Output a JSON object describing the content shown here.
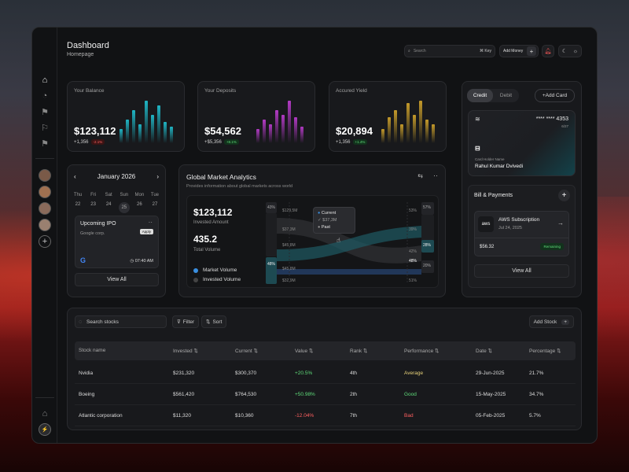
{
  "header": {
    "title": "Dashboard",
    "subtitle": "Homepage",
    "search_placeholder": "Search",
    "search_shortcut": "⌘ Key",
    "add_money_label": "Add Money"
  },
  "stats": [
    {
      "label": "Your Balance",
      "value": "$123,112",
      "change": "+1,356",
      "pct": "-2.1%",
      "trend": "neg",
      "color": "#1fb5c4",
      "bars": [
        0.3,
        0.5,
        0.7,
        0.4,
        0.9,
        0.6,
        0.8,
        0.45,
        0.35
      ]
    },
    {
      "label": "Your Deposits",
      "value": "$54,562",
      "change": "+$5,356",
      "pct": "+8.1%",
      "trend": "pos",
      "color": "#b23ac4",
      "bars": [
        0.3,
        0.5,
        0.4,
        0.7,
        0.6,
        0.9,
        0.55,
        0.35
      ]
    },
    {
      "label": "Accured Yield",
      "value": "$20,894",
      "change": "+1,356",
      "pct": "+1.4%",
      "trend": "pos",
      "color": "#c49a2a",
      "bars": [
        0.3,
        0.55,
        0.7,
        0.4,
        0.85,
        0.6,
        0.9,
        0.5,
        0.4
      ]
    }
  ],
  "calendar": {
    "month": "January 2026",
    "weekdays": [
      "Thu",
      "Fri",
      "Sat",
      "Sun",
      "Mon",
      "Tue"
    ],
    "dates": [
      "22",
      "23",
      "24",
      "25",
      "26",
      "27"
    ],
    "selected_index": 3,
    "event": {
      "title": "Upcoming IPO",
      "company": "Google corp.",
      "action": "Apply",
      "time": "07:40 AM"
    },
    "view_all": "View All"
  },
  "analytics": {
    "title": "Global Market Analytics",
    "subtitle": "Provides information about global markets across world",
    "invested_value": "$123,112",
    "invested_label": "Invested Amount",
    "volume_value": "435.2",
    "volume_label": "Total Volume",
    "legend": [
      {
        "label": "Market Volume",
        "color": "#3a8fe0"
      },
      {
        "label": "Invested Volume",
        "color": "#333"
      }
    ],
    "left_pcts": [
      "43%",
      "48%"
    ],
    "right_pcts": [
      "57%",
      "28%",
      "20%"
    ],
    "left_values": [
      "$129,5M",
      "$37,3M",
      "$45,8M",
      "$45,8M",
      "$32,9M"
    ],
    "right_values": [
      "53%",
      "39%",
      "42%",
      "48%",
      "51%"
    ],
    "tooltip": {
      "current": "Current",
      "value": "$37,3M",
      "past": "Past"
    }
  },
  "cards": {
    "tabs": [
      "Credit",
      "Debit"
    ],
    "add_label": "Add Card",
    "number": "**** **** 4353",
    "expiry": "6/27",
    "holder_label": "Card Holder Name",
    "holder_name": "Rahul Kumar Dvivedi"
  },
  "bills": {
    "title": "Bill & Payments",
    "item": {
      "name": "AWS Subscription",
      "date": "Jul 24, 2025",
      "amount": "$56.32",
      "status": "Remaining",
      "logo": "aws"
    },
    "view_all": "View All"
  },
  "stocks": {
    "search_placeholder": "Search stocks",
    "filter_label": "Filter",
    "sort_label": "Sort",
    "add_label": "Add Stock",
    "columns": [
      "Stock name",
      "Invested",
      "Current",
      "Value",
      "Rank",
      "Performance",
      "Date",
      "Percentage"
    ],
    "rows": [
      {
        "name": "Nvidia",
        "invested": "$231,320",
        "current": "$300,370",
        "value": "+20.5%",
        "value_color": "#5fdc7a",
        "rank": "4th",
        "performance": "Average",
        "perf_color": "#e8d27a",
        "date": "29-Jun-2025",
        "pct": "21.7%"
      },
      {
        "name": "Boeing",
        "invested": "$561,420",
        "current": "$764,530",
        "value": "+50.98%",
        "value_color": "#5fdc7a",
        "rank": "2th",
        "performance": "Good",
        "perf_color": "#5fdc7a",
        "date": "15-May-2025",
        "pct": "34.7%"
      },
      {
        "name": "Atlantic corporation",
        "invested": "$11,320",
        "current": "$10,360",
        "value": "-12.04%",
        "value_color": "#ff6060",
        "rank": "7th",
        "performance": "Bad",
        "perf_color": "#ff6060",
        "date": "05-Feb-2025",
        "pct": "5.7%"
      }
    ]
  }
}
